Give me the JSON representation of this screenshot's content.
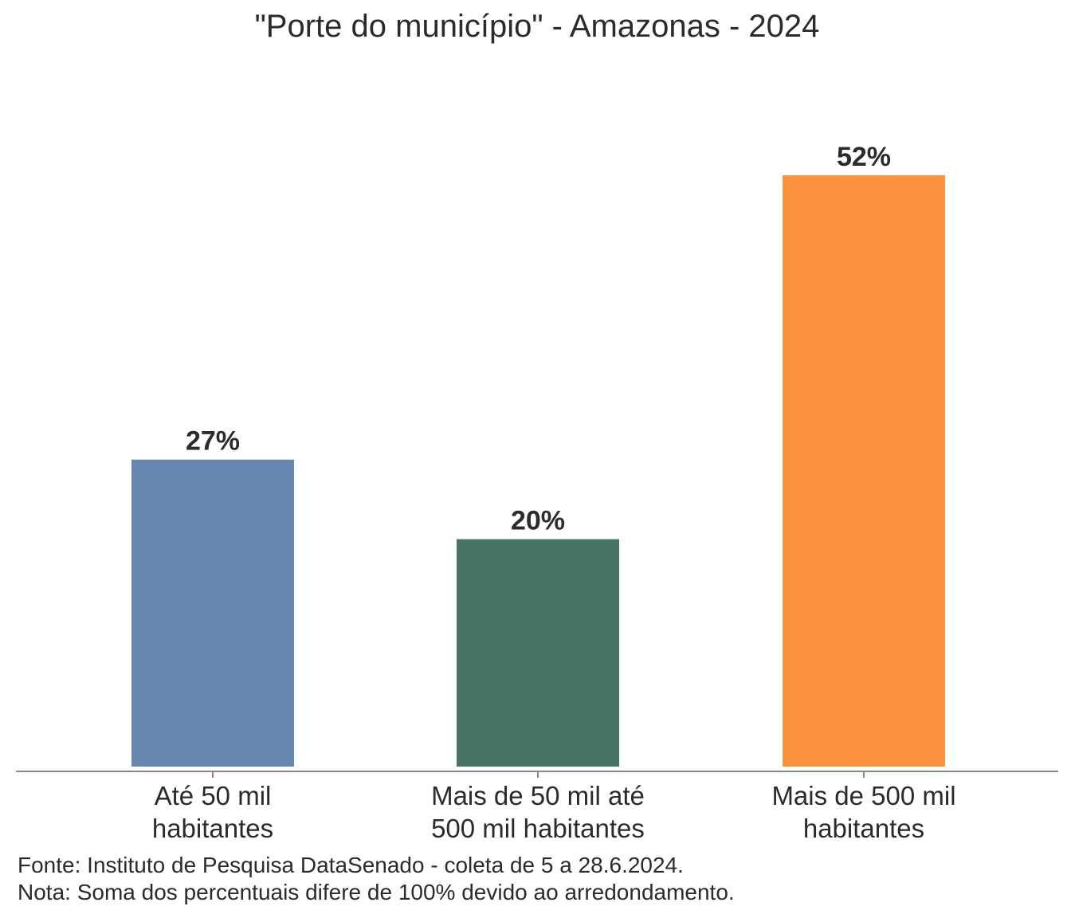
{
  "chart_data": {
    "type": "bar",
    "title": "\"Porte do município\" - Amazonas - 2024",
    "categories": [
      [
        "Até 50 mil",
        "habitantes"
      ],
      [
        "Mais de 50 mil até",
        "500 mil habitantes"
      ],
      [
        "Mais de 500 mil",
        "habitantes"
      ]
    ],
    "values": [
      27,
      20,
      52
    ],
    "value_labels": [
      "27%",
      "20%",
      "52%"
    ],
    "colors": [
      "#6688B0",
      "#467565",
      "#FB923D"
    ],
    "xlabel": "",
    "ylabel": "",
    "ylim": [
      0,
      52
    ],
    "grid": false
  },
  "notes": {
    "source": "Fonte: Instituto de Pesquisa DataSenado - coleta de 5 a 28.6.2024.",
    "note": "Nota: Soma dos percentuais difere de 100% devido ao arredondamento."
  }
}
